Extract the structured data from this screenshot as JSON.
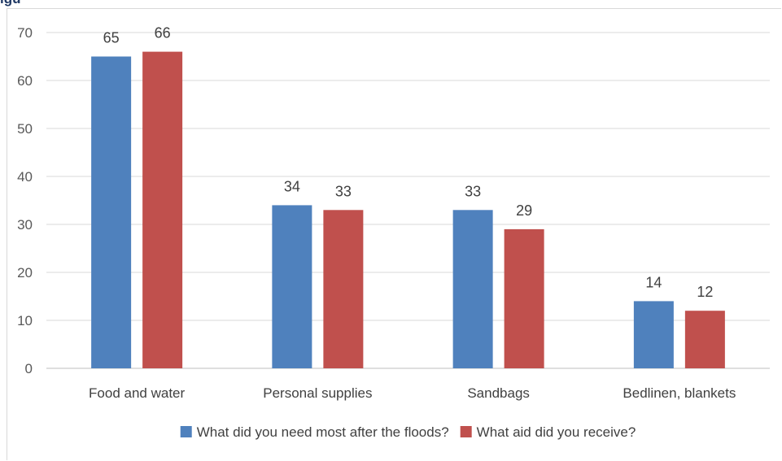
{
  "caption_fragment": "igu",
  "chart_data": {
    "type": "bar",
    "title": "",
    "xlabel": "",
    "ylabel": "",
    "ylim": [
      0,
      70
    ],
    "yticks": [
      0,
      10,
      20,
      30,
      40,
      50,
      60,
      70
    ],
    "grid": true,
    "legend_position": "bottom",
    "categories": [
      "Food and water",
      "Personal supplies",
      "Sandbags",
      "Bedlinen, blankets"
    ],
    "series": [
      {
        "name": "What did you need most after the floods?",
        "color": "#4f81bd",
        "values": [
          65,
          34,
          33,
          14
        ]
      },
      {
        "name": "What aid did you receive?",
        "color": "#c0504d",
        "values": [
          66,
          33,
          29,
          12
        ]
      }
    ]
  }
}
